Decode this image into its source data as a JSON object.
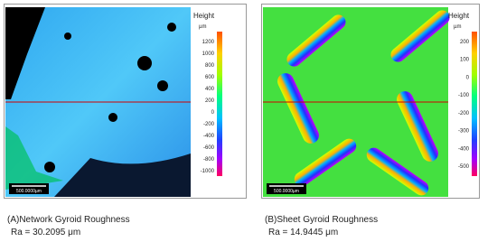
{
  "panels": [
    {
      "colorbar": {
        "title": "Height",
        "unit": "µm",
        "ticks": [
          "1200",
          "1000",
          "800",
          "600",
          "400",
          "200",
          "0",
          "-200",
          "-400",
          "-600",
          "-800",
          "-1000"
        ]
      },
      "scale_bar": "500.0000µm",
      "caption": "(A)Network Gyroid Roughness",
      "roughness": "Ra = 30.2095 μm"
    },
    {
      "colorbar": {
        "title": "Height",
        "unit": "µm",
        "ticks": [
          "200",
          "100",
          "0",
          "-100",
          "-200",
          "-300",
          "-400",
          "-500"
        ]
      },
      "scale_bar": "500.0000µm",
      "caption": "(B)Sheet Gyroid Roughness",
      "roughness": "Ra = 14.9445 μm"
    }
  ]
}
